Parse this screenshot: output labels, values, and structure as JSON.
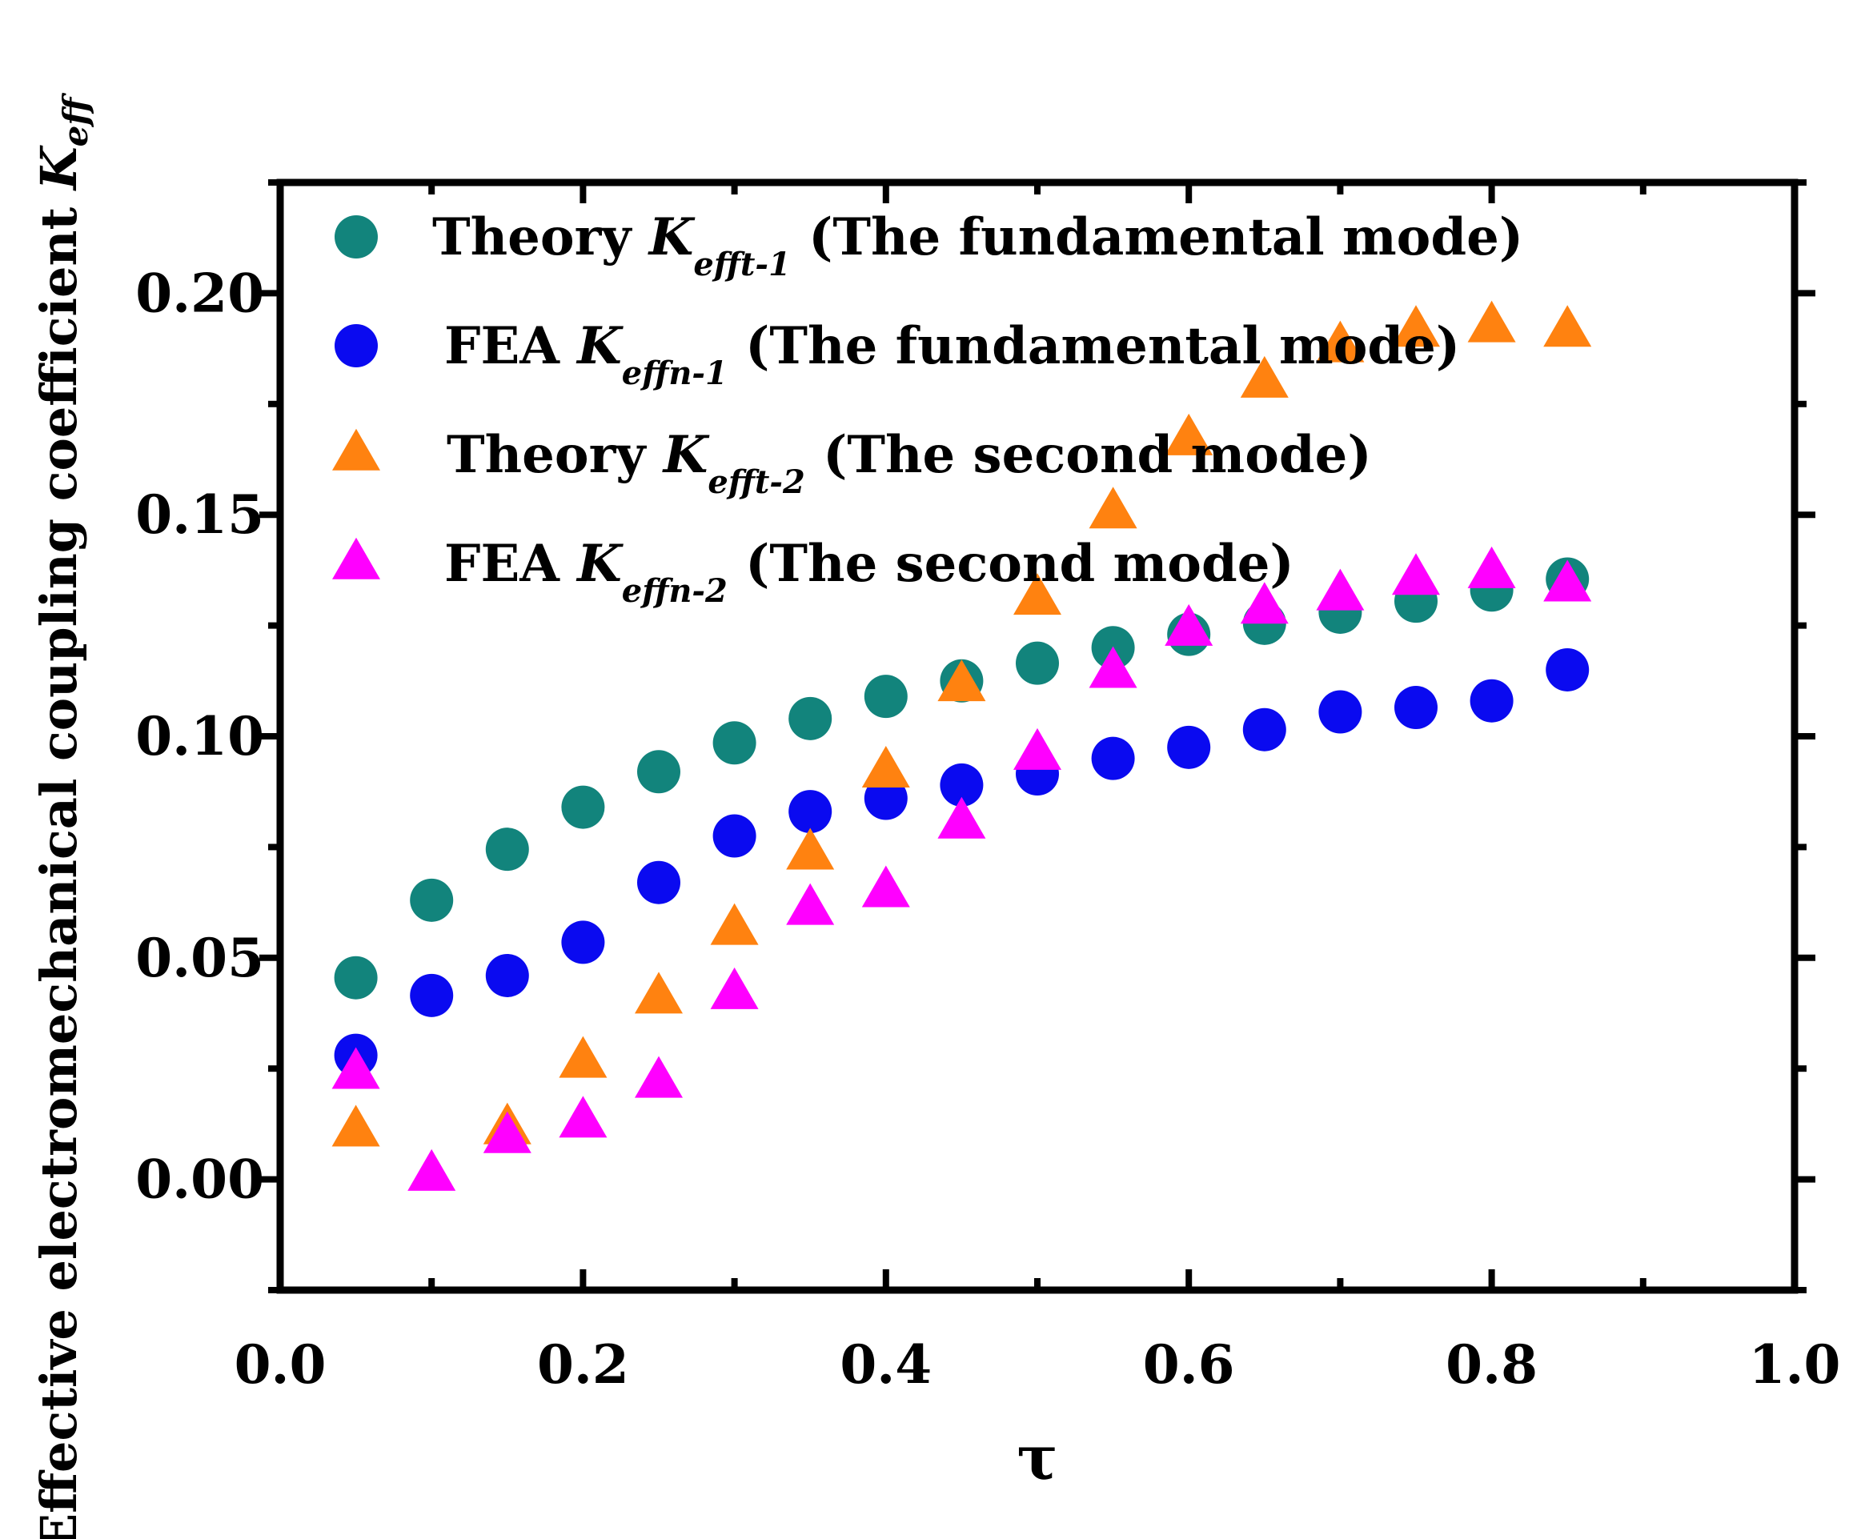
{
  "chart_data": {
    "type": "scatter",
    "title": "",
    "xlabel": "τ",
    "ylabel": {
      "main": "Effective electromechanical coupling coefficient ",
      "k": "K",
      "sub": "eff"
    },
    "xlim": [
      0.0,
      1.0
    ],
    "ylim": [
      -0.025,
      0.225
    ],
    "xticks": [
      0.0,
      0.2,
      0.4,
      0.6,
      0.8,
      1.0
    ],
    "xtick_labels": [
      "0.0",
      "0.2",
      "0.4",
      "0.6",
      "0.8",
      "1.0"
    ],
    "yticks": [
      0.0,
      0.05,
      0.1,
      0.15,
      0.2
    ],
    "ytick_labels": [
      "0.00",
      "0.05",
      "0.10",
      "0.15",
      "0.20"
    ],
    "legend_position": "top-left",
    "series": [
      {
        "name": "Theory Keff t-1 (The fundamental mode)",
        "legend": {
          "pre": "Theory ",
          "k": "K",
          "sub": "efft-1",
          "post": " (The fundamental mode)"
        },
        "marker": "circle",
        "color": "#12847c",
        "x": [
          0.05,
          0.1,
          0.15,
          0.2,
          0.25,
          0.3,
          0.35,
          0.4,
          0.45,
          0.5,
          0.55,
          0.6,
          0.65,
          0.7,
          0.75,
          0.8,
          0.85
        ],
        "y": [
          0.0455,
          0.063,
          0.0745,
          0.084,
          0.092,
          0.0985,
          0.104,
          0.109,
          0.1125,
          0.1165,
          0.12,
          0.123,
          0.1255,
          0.128,
          0.1305,
          0.133,
          0.1355
        ]
      },
      {
        "name": "FEA Keff n-1 (The fundamental mode)",
        "legend": {
          "pre": "FEA ",
          "k": "K",
          "sub": "effn-1",
          "post": " (The fundamental mode)"
        },
        "marker": "circle",
        "color": "#0a0af0",
        "x": [
          0.05,
          0.1,
          0.15,
          0.2,
          0.25,
          0.3,
          0.35,
          0.4,
          0.45,
          0.5,
          0.55,
          0.6,
          0.65,
          0.7,
          0.75,
          0.8,
          0.85
        ],
        "y": [
          0.028,
          0.0415,
          0.046,
          0.0535,
          0.067,
          0.0775,
          0.083,
          0.086,
          0.089,
          0.0915,
          0.095,
          0.0975,
          0.1015,
          0.1055,
          0.1065,
          0.108,
          0.115
        ]
      },
      {
        "name": "Theory Keff t-2 (The second mode)",
        "legend": {
          "pre": "Theory ",
          "k": "K",
          "sub": "efft-2",
          "post": " (The second mode)"
        },
        "marker": "triangle",
        "color": "#ff8210",
        "x": [
          0.05,
          0.15,
          0.2,
          0.25,
          0.3,
          0.35,
          0.4,
          0.45,
          0.5,
          0.55,
          0.6,
          0.65,
          0.7,
          0.75,
          0.8,
          0.85
        ],
        "y": [
          0.011,
          0.0115,
          0.0265,
          0.041,
          0.0565,
          0.0735,
          0.092,
          0.1115,
          0.131,
          0.1505,
          0.167,
          0.18,
          0.188,
          0.1915,
          0.1925,
          0.1915
        ]
      },
      {
        "name": "FEA Keff n-2 (The second mode)",
        "legend": {
          "pre": "FEA ",
          "k": "K",
          "sub": "effn-2",
          "post": " (The second mode)"
        },
        "marker": "triangle",
        "color": "#ff00ff",
        "x": [
          0.05,
          0.1,
          0.15,
          0.2,
          0.25,
          0.3,
          0.35,
          0.4,
          0.45,
          0.5,
          0.55,
          0.6,
          0.65,
          0.7,
          0.75,
          0.8,
          0.85
        ],
        "y": [
          0.024,
          0.001,
          0.0095,
          0.013,
          0.022,
          0.042,
          0.061,
          0.065,
          0.0805,
          0.096,
          0.1145,
          0.124,
          0.129,
          0.132,
          0.1355,
          0.137,
          0.134
        ]
      }
    ]
  }
}
